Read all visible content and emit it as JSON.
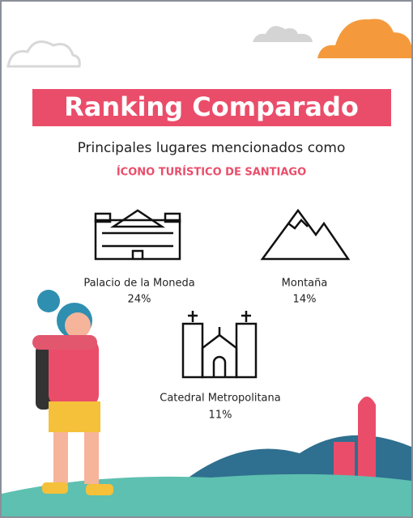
{
  "header": {
    "title": "Ranking Comparado",
    "subtitle": "Principales lugares mencionados como",
    "highlight": "ÍCONO TURÍSTICO DE SANTIAGO"
  },
  "items": [
    {
      "label": "Palacio de la Moneda",
      "value": "24%"
    },
    {
      "label": "Montaña",
      "value": "14%"
    },
    {
      "label": "Catedral Metropolitana",
      "value": "11%"
    }
  ]
}
